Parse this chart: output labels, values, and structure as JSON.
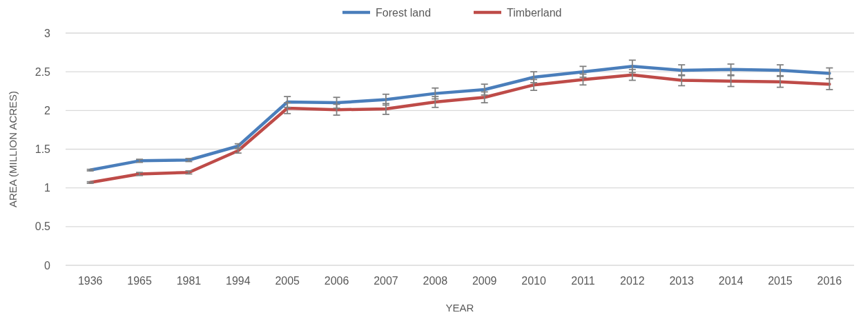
{
  "chart_data": {
    "type": "line",
    "xlabel": "YEAR",
    "ylabel": "AREA (MILLION ACRES)",
    "categories": [
      "1936",
      "1965",
      "1981",
      "1994",
      "2005",
      "2006",
      "2007",
      "2008",
      "2009",
      "2010",
      "2011",
      "2012",
      "2013",
      "2014",
      "2015",
      "2016"
    ],
    "series": [
      {
        "name": "Forest land",
        "color": "#4a7ebb",
        "values": [
          1.23,
          1.35,
          1.36,
          1.54,
          2.11,
          2.1,
          2.14,
          2.22,
          2.27,
          2.43,
          2.5,
          2.57,
          2.52,
          2.53,
          2.52,
          2.48
        ],
        "errors": [
          0.01,
          0.02,
          0.02,
          0.03,
          0.07,
          0.07,
          0.07,
          0.07,
          0.07,
          0.07,
          0.07,
          0.08,
          0.07,
          0.07,
          0.07,
          0.07
        ]
      },
      {
        "name": "Timberland",
        "color": "#be4b48",
        "values": [
          1.07,
          1.18,
          1.2,
          1.48,
          2.03,
          2.01,
          2.02,
          2.11,
          2.17,
          2.33,
          2.4,
          2.46,
          2.39,
          2.38,
          2.37,
          2.34
        ],
        "errors": [
          0.01,
          0.02,
          0.02,
          0.03,
          0.07,
          0.07,
          0.07,
          0.07,
          0.07,
          0.07,
          0.07,
          0.07,
          0.07,
          0.07,
          0.07,
          0.07
        ]
      }
    ],
    "ylim": [
      0,
      3
    ],
    "yticks": [
      0,
      0.5,
      1,
      1.5,
      2,
      2.5,
      3
    ],
    "grid": "y",
    "legend": "top",
    "line_style": "solid"
  }
}
